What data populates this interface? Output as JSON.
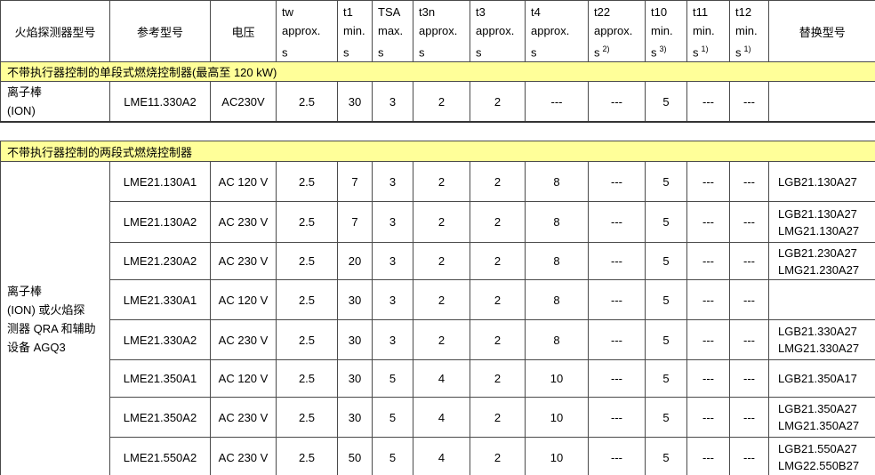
{
  "colors": {
    "banner_bg": "#FFFF99",
    "grid_border": "#4a4a4a"
  },
  "table": {
    "header": {
      "detector": "火焰探测器型号",
      "reference": "参考型号",
      "voltage": "电压",
      "replacement": "替换型号",
      "t_cols": [
        {
          "l1": "tw",
          "l2": "approx.",
          "l3": "s",
          "sup": ""
        },
        {
          "l1": "t1",
          "l2": "min.",
          "l3": "s",
          "sup": ""
        },
        {
          "l1": "TSA",
          "l2": "max.",
          "l3": "s",
          "sup": ""
        },
        {
          "l1": "t3n",
          "l2": "approx.",
          "l3": "s",
          "sup": ""
        },
        {
          "l1": "t3",
          "l2": "approx.",
          "l3": "s",
          "sup": ""
        },
        {
          "l1": "t4",
          "l2": "approx.",
          "l3": "s",
          "sup": ""
        },
        {
          "l1": "t22",
          "l2": "approx.",
          "l3": "s",
          "sup": "2)"
        },
        {
          "l1": "t10",
          "l2": "min.",
          "l3": "s",
          "sup": "3)"
        },
        {
          "l1": "t11",
          "l2": "min.",
          "l3": "s",
          "sup": "1)"
        },
        {
          "l1": "t12",
          "l2": "min.",
          "l3": "s",
          "sup": "1)"
        }
      ]
    },
    "section1": {
      "banner": "不带执行器控制的单段式燃烧控制器(最高至 120 kW)",
      "detector_lines": [
        "离子棒",
        "(ION)"
      ],
      "row": {
        "reference": "LME11.330A2",
        "voltage": "AC230V",
        "values": [
          "2.5",
          "30",
          "3",
          "2",
          "2",
          "---",
          "---",
          "5",
          "---",
          "---"
        ],
        "replacement": []
      }
    },
    "section2": {
      "banner": "不带执行器控制的两段式燃烧控制器",
      "detector_lines": [
        "离子棒",
        "(ION) 或火焰探",
        "测器 QRA 和辅助",
        "设备 AGQ3"
      ],
      "rows": [
        {
          "reference": "LME21.130A1",
          "voltage": "AC 120 V",
          "values": [
            "2.5",
            "7",
            "3",
            "2",
            "2",
            "8",
            "---",
            "5",
            "---",
            "---"
          ],
          "replacement": [
            "LGB21.130A27"
          ]
        },
        {
          "reference": "LME21.130A2",
          "voltage": "AC 230 V",
          "values": [
            "2.5",
            "7",
            "3",
            "2",
            "2",
            "8",
            "---",
            "5",
            "---",
            "---"
          ],
          "replacement": [
            "LGB21.130A27",
            "LMG21.130A27"
          ]
        },
        {
          "reference": "LME21.230A2",
          "voltage": "AC 230 V",
          "values": [
            "2.5",
            "20",
            "3",
            "2",
            "2",
            "8",
            "---",
            "5",
            "---",
            "---"
          ],
          "replacement": [
            "LGB21.230A27",
            "LMG21.230A27"
          ]
        },
        {
          "reference": "LME21.330A1",
          "voltage": "AC 120 V",
          "values": [
            "2.5",
            "30",
            "3",
            "2",
            "2",
            "8",
            "---",
            "5",
            "---",
            "---"
          ],
          "replacement": []
        },
        {
          "reference": "LME21.330A2",
          "voltage": "AC 230 V",
          "values": [
            "2.5",
            "30",
            "3",
            "2",
            "2",
            "8",
            "---",
            "5",
            "---",
            "---"
          ],
          "replacement": [
            "LGB21.330A27",
            "LMG21.330A27"
          ]
        },
        {
          "reference": "LME21.350A1",
          "voltage": "AC 120 V",
          "values": [
            "2.5",
            "30",
            "5",
            "4",
            "2",
            "10",
            "---",
            "5",
            "---",
            "---"
          ],
          "replacement": [
            "LGB21.350A17"
          ]
        },
        {
          "reference": "LME21.350A2",
          "voltage": "AC 230 V",
          "values": [
            "2.5",
            "30",
            "5",
            "4",
            "2",
            "10",
            "---",
            "5",
            "---",
            "---"
          ],
          "replacement": [
            "LGB21.350A27",
            "LMG21.350A27"
          ]
        },
        {
          "reference": "LME21.550A2",
          "voltage": "AC 230 V",
          "values": [
            "2.5",
            "50",
            "5",
            "4",
            "2",
            "10",
            "---",
            "5",
            "---",
            "---"
          ],
          "replacement": [
            "LGB21.550A27",
            "LMG22.550B27"
          ]
        }
      ]
    }
  }
}
